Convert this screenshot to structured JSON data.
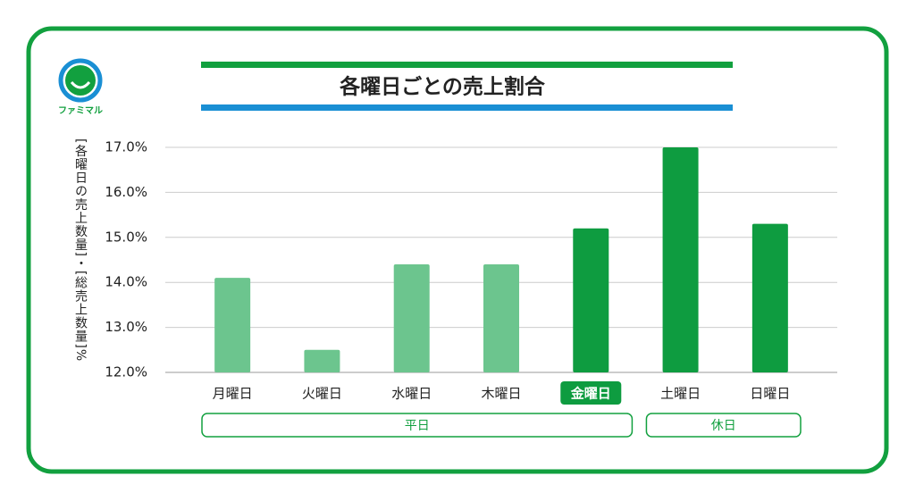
{
  "logo": "ファミマル",
  "chart_data": {
    "type": "bar",
    "title": "各曜日ごとの売上割合",
    "y_label": "[各曜日の売上数量]・[総売上数量]%",
    "categories": [
      "月曜日",
      "火曜日",
      "水曜日",
      "木曜日",
      "金曜日",
      "土曜日",
      "日曜日"
    ],
    "values": [
      14.1,
      12.5,
      14.4,
      14.4,
      15.2,
      17.0,
      15.3
    ],
    "colors": [
      "#6cc58e",
      "#6cc58e",
      "#6cc58e",
      "#6cc58e",
      "#0e9c40",
      "#0e9c40",
      "#0e9c40"
    ],
    "highlighted_index": 4,
    "groups": [
      {
        "label": "平日",
        "from": 0,
        "to": 4
      },
      {
        "label": "休日",
        "from": 5,
        "to": 6
      }
    ],
    "ylim": [
      12,
      17
    ],
    "yticks": [
      {
        "value": 12,
        "label": "12.0%"
      },
      {
        "value": 13,
        "label": "13.0%"
      },
      {
        "value": 14,
        "label": "14.0%"
      },
      {
        "value": 15,
        "label": "15.0%"
      },
      {
        "value": 16,
        "label": "16.0%"
      },
      {
        "value": 17,
        "label": "17.0%"
      }
    ],
    "grid": true
  }
}
